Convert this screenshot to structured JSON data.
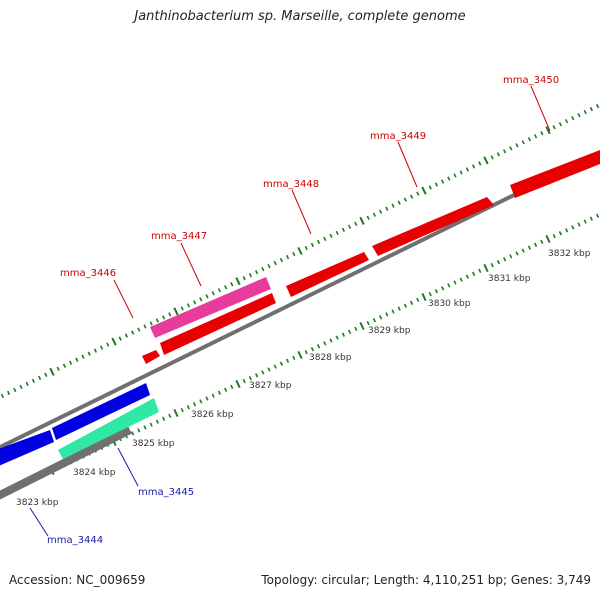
{
  "title": "Janthinobacterium sp. Marseille, complete genome",
  "accession": "Accession: NC_009659",
  "topology": "Topology: circular; Length: 4,110,251 bp; Genes: 3,749",
  "colors": {
    "forward_gene": "#e80000",
    "forward_gene_alt": "#e83c9c",
    "reverse_gene": "#0000e0",
    "reverse_gene_alt": "#2fe8a6",
    "backbone": "#808080",
    "tick": "#1e7a1e",
    "forward_label": "#cc0000",
    "reverse_label": "#1a1aa8"
  },
  "scale_labels": [
    "3823 kbp",
    "3824 kbp",
    "3825 kbp",
    "3826 kbp",
    "3827 kbp",
    "3828 kbp",
    "3829 kbp",
    "3830 kbp",
    "3831 kbp",
    "3832 kbp"
  ],
  "gene_labels": [
    {
      "text": "mma_3444",
      "strand": "reverse"
    },
    {
      "text": "mma_3445",
      "strand": "reverse"
    },
    {
      "text": "mma_3446",
      "strand": "forward"
    },
    {
      "text": "mma_3447",
      "strand": "forward"
    },
    {
      "text": "mma_3448",
      "strand": "forward"
    },
    {
      "text": "mma_3449",
      "strand": "forward"
    },
    {
      "text": "mma_3450",
      "strand": "forward"
    }
  ]
}
